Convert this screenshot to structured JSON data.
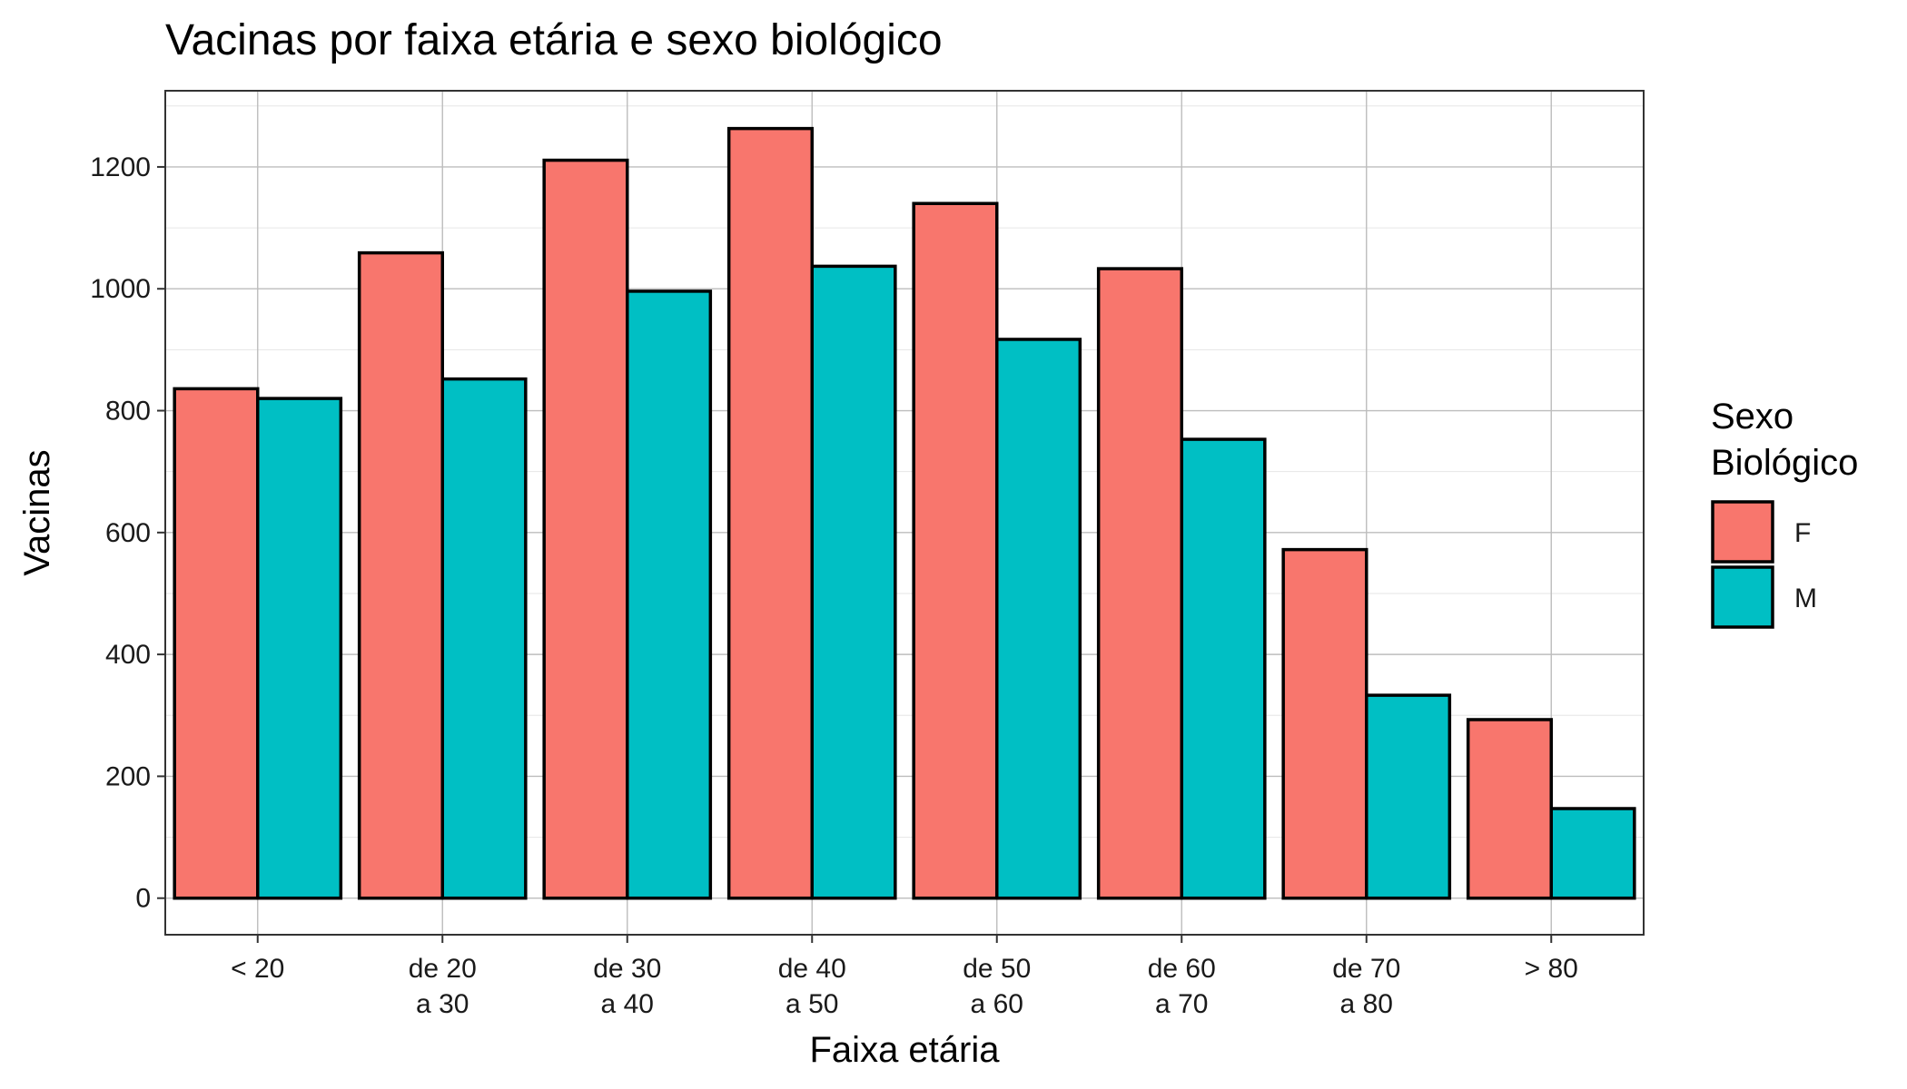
{
  "chart_data": {
    "type": "bar",
    "title": "Vacinas por faixa etária e sexo biológico",
    "xlabel": "Faixa etária",
    "ylabel": "Vacinas",
    "categories": [
      [
        "< 20"
      ],
      [
        "de 20",
        "a 30"
      ],
      [
        "de 30",
        "a 40"
      ],
      [
        "de 40",
        "a 50"
      ],
      [
        "de 50",
        "a 60"
      ],
      [
        "de 60",
        "a 70"
      ],
      [
        "de 70",
        "a 80"
      ],
      [
        "> 80"
      ]
    ],
    "series": [
      {
        "name": "F",
        "color": "#F8766D",
        "values": [
          836,
          1059,
          1211,
          1263,
          1140,
          1033,
          572,
          293
        ]
      },
      {
        "name": "M",
        "color": "#00BFC4",
        "values": [
          820,
          852,
          996,
          1037,
          917,
          753,
          333,
          147
        ]
      }
    ],
    "ylim": [
      -60,
      1325
    ],
    "yticks": [
      0,
      200,
      400,
      600,
      800,
      1000,
      1200
    ],
    "grid": true,
    "legend": {
      "title_lines": [
        "Sexo",
        "Biológico"
      ],
      "position": "right"
    }
  }
}
